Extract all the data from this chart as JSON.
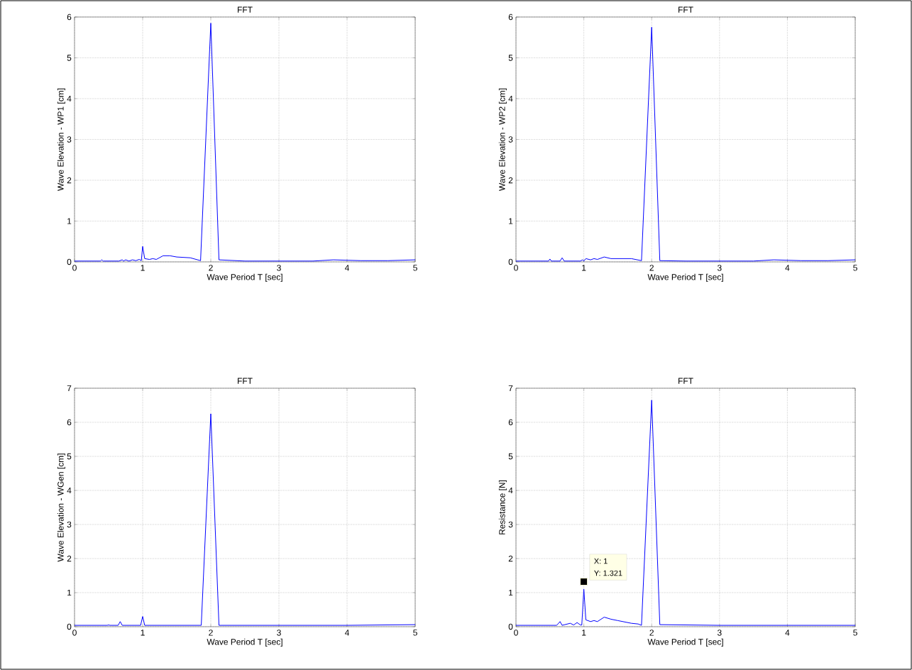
{
  "chart_data": [
    {
      "type": "line",
      "title": "FFT",
      "xlabel": "Wave Period T [sec]",
      "ylabel": "Wave Elevation - WP1 [cm]",
      "xlim": [
        0,
        5
      ],
      "ylim": [
        0,
        6
      ],
      "xticks": [
        0,
        1,
        2,
        3,
        4,
        5
      ],
      "yticks": [
        0,
        1,
        2,
        3,
        4,
        5,
        6
      ],
      "grid": true,
      "series": [
        {
          "color": "#0000ff",
          "x": [
            0,
            0.38,
            0.4,
            0.42,
            0.65,
            0.7,
            0.72,
            0.75,
            0.8,
            0.85,
            0.9,
            0.95,
            0.98,
            1.0,
            1.03,
            1.1,
            1.15,
            1.2,
            1.3,
            1.4,
            1.5,
            1.7,
            1.85,
            2.0,
            2.12,
            2.5,
            3.0,
            3.5,
            3.8,
            4.2,
            4.6,
            5.0
          ],
          "values": [
            0.02,
            0.02,
            0.05,
            0.02,
            0.02,
            0.05,
            0.02,
            0.05,
            0.02,
            0.05,
            0.03,
            0.06,
            0.03,
            0.38,
            0.08,
            0.06,
            0.08,
            0.06,
            0.15,
            0.15,
            0.12,
            0.1,
            0.03,
            5.85,
            0.05,
            0.02,
            0.02,
            0.02,
            0.05,
            0.03,
            0.03,
            0.05
          ]
        }
      ]
    },
    {
      "type": "line",
      "title": "FFT",
      "xlabel": "Wave Period T [sec]",
      "ylabel": "Wave Elevation - WP2 [cm]",
      "xlim": [
        0,
        5
      ],
      "ylim": [
        0,
        6
      ],
      "xticks": [
        0,
        1,
        2,
        3,
        4,
        5
      ],
      "yticks": [
        0,
        1,
        2,
        3,
        4,
        5,
        6
      ],
      "grid": true,
      "series": [
        {
          "color": "#0000ff",
          "x": [
            0,
            0.48,
            0.5,
            0.52,
            0.65,
            0.68,
            0.71,
            0.95,
            0.98,
            1.0,
            1.03,
            1.1,
            1.15,
            1.2,
            1.3,
            1.4,
            1.6,
            1.7,
            1.85,
            2.0,
            2.12,
            2.5,
            3.0,
            3.5,
            3.8,
            4.2,
            4.6,
            5.0
          ],
          "values": [
            0.02,
            0.02,
            0.07,
            0.02,
            0.02,
            0.1,
            0.02,
            0.02,
            0.05,
            0.02,
            0.08,
            0.05,
            0.08,
            0.06,
            0.12,
            0.08,
            0.08,
            0.08,
            0.03,
            5.75,
            0.03,
            0.02,
            0.02,
            0.02,
            0.05,
            0.03,
            0.03,
            0.05
          ]
        }
      ]
    },
    {
      "type": "line",
      "title": "FFT",
      "xlabel": "Wave Period T [sec]",
      "ylabel": "Wave Elevation - WGen [cm]",
      "xlim": [
        0,
        5
      ],
      "ylim": [
        0,
        7
      ],
      "xticks": [
        0,
        1,
        2,
        3,
        4,
        5
      ],
      "yticks": [
        0,
        1,
        2,
        3,
        4,
        5,
        6,
        7
      ],
      "grid": true,
      "series": [
        {
          "color": "#0000ff",
          "x": [
            0,
            0.48,
            0.5,
            0.52,
            0.64,
            0.67,
            0.7,
            0.97,
            1.0,
            1.03,
            1.86,
            2.0,
            2.12,
            3,
            4,
            5
          ],
          "values": [
            0.04,
            0.04,
            0.05,
            0.04,
            0.04,
            0.15,
            0.04,
            0.04,
            0.3,
            0.04,
            0.04,
            6.25,
            0.04,
            0.04,
            0.04,
            0.06
          ]
        }
      ]
    },
    {
      "type": "line",
      "title": "FFT",
      "xlabel": "Wave Period T [sec]",
      "ylabel": "Resistance [N]",
      "xlim": [
        0,
        5
      ],
      "ylim": [
        0,
        7
      ],
      "xticks": [
        0,
        1,
        2,
        3,
        4,
        5
      ],
      "yticks": [
        0,
        1,
        2,
        3,
        4,
        5,
        6,
        7
      ],
      "grid": true,
      "annotations": [
        {
          "text": "X: 1",
          "x": 1,
          "y": 1.321
        },
        "Y: 1.321"
      ],
      "series": [
        {
          "color": "#0000ff",
          "x": [
            0,
            0.6,
            0.65,
            0.68,
            0.72,
            0.8,
            0.85,
            0.9,
            0.95,
            0.97,
            1.0,
            1.03,
            1.1,
            1.15,
            1.2,
            1.3,
            1.4,
            1.5,
            1.7,
            1.8,
            1.85,
            2.0,
            2.12,
            3,
            4,
            5
          ],
          "values": [
            0.04,
            0.04,
            0.15,
            0.04,
            0.06,
            0.1,
            0.05,
            0.12,
            0.05,
            0.05,
            1.1,
            0.2,
            0.15,
            0.18,
            0.15,
            0.28,
            0.22,
            0.18,
            0.1,
            0.08,
            0.04,
            6.65,
            0.06,
            0.04,
            0.04,
            0.04
          ]
        }
      ]
    }
  ]
}
